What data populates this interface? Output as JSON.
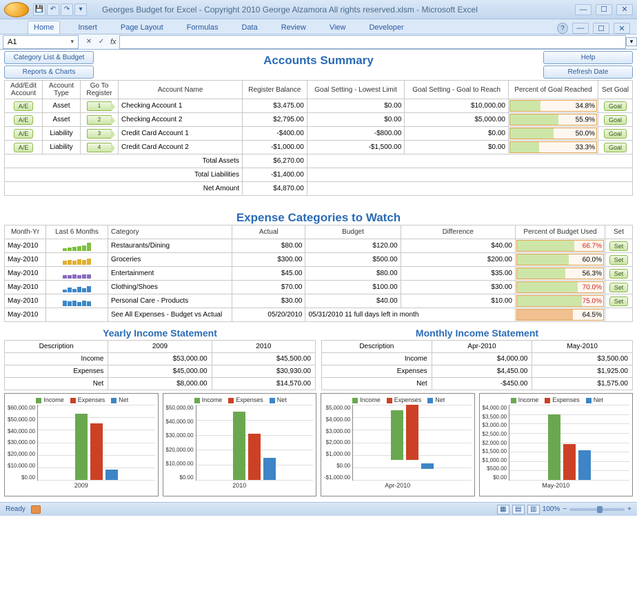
{
  "window": {
    "title": "Georges Budget for Excel - Copyright 2010  George Alzamora  All rights reserved.xlsm - Microsoft Excel"
  },
  "namebox": "A1",
  "ribbon": {
    "tabs": [
      "Home",
      "Insert",
      "Page Layout",
      "Formulas",
      "Data",
      "Review",
      "View",
      "Developer"
    ],
    "active": "Home"
  },
  "buttons": {
    "category_list": "Category List & Budget",
    "reports_charts": "Reports & Charts",
    "help": "Help",
    "refresh": "Refresh Date",
    "ae": "A/E",
    "goal": "Goal",
    "set": "Set"
  },
  "sections": {
    "accounts": "Accounts Summary",
    "expense": "Expense Categories to Watch",
    "yearly": "Yearly Income Statement",
    "monthly": "Monthly Income Statement"
  },
  "accounts": {
    "headers": [
      "Add/Edit Account",
      "Account Type",
      "Go To Register",
      "Account Name",
      "Register Balance",
      "Goal Setting - Lowest Limit",
      "Goal Setting - Goal to Reach",
      "Percent of Goal Reached",
      "Set Goal"
    ],
    "rows": [
      {
        "num": "1",
        "type": "Asset",
        "name": "Checking Account 1",
        "balance": "$3,475.00",
        "low": "$0.00",
        "goal": "$10,000.00",
        "pct": 34.8,
        "pcttext": "34.8%"
      },
      {
        "num": "2",
        "type": "Asset",
        "name": "Checking Account 2",
        "balance": "$2,795.00",
        "low": "$0.00",
        "goal": "$5,000.00",
        "pct": 55.9,
        "pcttext": "55.9%"
      },
      {
        "num": "3",
        "type": "Liability",
        "name": "Credit Card Account 1",
        "balance": "-$400.00",
        "low": "-$800.00",
        "goal": "$0.00",
        "pct": 50.0,
        "pcttext": "50.0%"
      },
      {
        "num": "4",
        "type": "Liability",
        "name": "Credit Card Account 2",
        "balance": "-$1,000.00",
        "low": "-$1,500.00",
        "goal": "$0.00",
        "pct": 33.3,
        "pcttext": "33.3%"
      }
    ],
    "totals": [
      {
        "label": "Total Assets",
        "value": "$6,270.00"
      },
      {
        "label": "Total Liabilities",
        "value": "-$1,400.00"
      },
      {
        "label": "Net Amount",
        "value": "$4,870.00"
      }
    ]
  },
  "expense": {
    "headers": [
      "Month-Yr",
      "Last 6 Months",
      "Category",
      "Actual",
      "Budget",
      "Difference",
      "Percent of Budget Used",
      "Set"
    ],
    "rows": [
      {
        "month": "May-2010",
        "spark": [
          4,
          5,
          6,
          7,
          8,
          12
        ],
        "sparkColor": "#7fbf3f",
        "cat": "Restaurants/Dining",
        "actual": "$80.00",
        "budget": "$120.00",
        "diff": "$40.00",
        "pct": 66.7,
        "pcttext": "66.7%",
        "red": true
      },
      {
        "month": "May-2010",
        "spark": [
          6,
          7,
          6,
          8,
          7,
          9
        ],
        "sparkColor": "#e0b030",
        "cat": "Groceries",
        "actual": "$300.00",
        "budget": "$500.00",
        "diff": "$200.00",
        "pct": 60.0,
        "pcttext": "60.0%",
        "red": false
      },
      {
        "month": "May-2010",
        "spark": [
          5,
          5,
          6,
          5,
          6,
          6
        ],
        "sparkColor": "#8a6abf",
        "cat": "Entertainment",
        "actual": "$45.00",
        "budget": "$80.00",
        "diff": "$35.00",
        "pct": 56.3,
        "pcttext": "56.3%",
        "red": false
      },
      {
        "month": "May-2010",
        "spark": [
          4,
          7,
          5,
          8,
          6,
          9
        ],
        "sparkColor": "#3a88c8",
        "cat": "Clothing/Shoes",
        "actual": "$70.00",
        "budget": "$100.00",
        "diff": "$30.00",
        "pct": 70.0,
        "pcttext": "70.0%",
        "red": true
      },
      {
        "month": "May-2010",
        "spark": [
          8,
          7,
          8,
          6,
          8,
          7
        ],
        "sparkColor": "#3a88c8",
        "cat": "Personal Care - Products",
        "actual": "$30.00",
        "budget": "$40.00",
        "diff": "$10.00",
        "pct": 75.0,
        "pcttext": "75.0%",
        "red": true
      }
    ],
    "footer": {
      "month": "May-2010",
      "cat": "See All Expenses - Budget vs Actual",
      "actual": "05/20/2010",
      "budget": "05/31/2010 11 full days left in month",
      "pct": 64.5,
      "pcttext": "64.5%",
      "barColor": "#f0c090"
    }
  },
  "yearly": {
    "cols": [
      "Description",
      "2009",
      "2010"
    ],
    "rows": [
      {
        "label": "Income",
        "a": "$53,000.00",
        "b": "$45,500.00"
      },
      {
        "label": "Expenses",
        "a": "$45,000.00",
        "b": "$30,930.00"
      },
      {
        "label": "Net",
        "a": "$8,000.00",
        "b": "$14,570.00"
      }
    ]
  },
  "monthly": {
    "cols": [
      "Description",
      "Apr-2010",
      "May-2010"
    ],
    "rows": [
      {
        "label": "Income",
        "a": "$4,000.00",
        "b": "$3,500.00"
      },
      {
        "label": "Expenses",
        "a": "$4,450.00",
        "b": "$1,925.00"
      },
      {
        "label": "Net",
        "a": "-$450.00",
        "b": "$1,575.00"
      }
    ]
  },
  "charts": {
    "legend": [
      "Income",
      "Expenses",
      "Net"
    ],
    "colors": {
      "income": "#6aa84f",
      "expenses": "#cc4125",
      "net": "#3d85c6"
    },
    "list": [
      {
        "xlabel": "2009",
        "ymax": 60000,
        "ystep": 10000,
        "vals": [
          53000,
          45000,
          8000
        ],
        "neg": false,
        "prefix": "$",
        "yfmt": [
          "$60,000.00",
          "$50,000.00",
          "$40,000.00",
          "$30,000.00",
          "$20,000.00",
          "$10,000.00",
          "$0.00"
        ]
      },
      {
        "xlabel": "2010",
        "ymax": 50000,
        "ystep": 10000,
        "vals": [
          45500,
          30930,
          14570
        ],
        "neg": false,
        "prefix": "$",
        "yfmt": [
          "$50,000.00",
          "$40,000.00",
          "$30,000.00",
          "$20,000.00",
          "$10,000.00",
          "$0.00"
        ]
      },
      {
        "xlabel": "Apr-2010",
        "ymax": 5000,
        "ymin": -1000,
        "ystep": 1000,
        "vals": [
          4000,
          4450,
          -450
        ],
        "neg": true,
        "prefix": "$",
        "yfmt": [
          "$5,000.00",
          "$4,000.00",
          "$3,000.00",
          "$2,000.00",
          "$1,000.00",
          "$0.00",
          "-$1,000.00"
        ]
      },
      {
        "xlabel": "May-2010",
        "ymax": 4000,
        "ystep": 500,
        "vals": [
          3500,
          1925,
          1575
        ],
        "neg": false,
        "prefix": "$",
        "yfmt": [
          "$4,000.00",
          "$3,500.00",
          "$3,000.00",
          "$2,500.00",
          "$2,000.00",
          "$1,500.00",
          "$1,000.00",
          "$500.00",
          "$0.00"
        ]
      }
    ]
  },
  "status": {
    "ready": "Ready",
    "zoom": "100%"
  }
}
